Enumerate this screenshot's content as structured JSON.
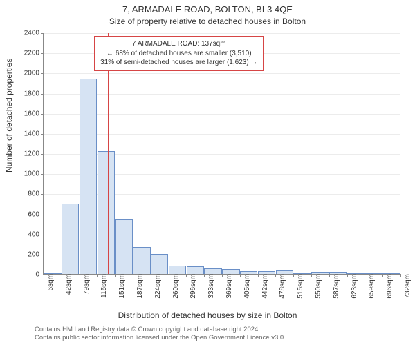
{
  "title_main": "7, ARMADALE ROAD, BOLTON, BL3 4QE",
  "title_sub": "Size of property relative to detached houses in Bolton",
  "y_axis_label": "Number of detached properties",
  "x_axis_label": "Distribution of detached houses by size in Bolton",
  "footer_line1": "Contains HM Land Registry data © Crown copyright and database right 2024.",
  "footer_line2": "Contains public sector information licensed under the Open Government Licence v3.0.",
  "annotation": {
    "line1": "7 ARMADALE ROAD: 137sqm",
    "line2": "← 68% of detached houses are smaller (3,510)",
    "line3": "31% of semi-detached houses are larger (1,623) →"
  },
  "chart": {
    "type": "histogram",
    "background_color": "#ffffff",
    "grid_color": "#ececec",
    "axis_color": "#888888",
    "bar_fill": "#d6e3f3",
    "bar_stroke": "#6a8fc7",
    "ref_line_color": "#d64545",
    "ref_line_x_value": 137,
    "ylim": [
      0,
      2400
    ],
    "ytick_step": 200,
    "xtick_labels": [
      "6sqm",
      "42sqm",
      "79sqm",
      "115sqm",
      "151sqm",
      "187sqm",
      "224sqm",
      "260sqm",
      "296sqm",
      "333sqm",
      "369sqm",
      "405sqm",
      "442sqm",
      "478sqm",
      "515sqm",
      "550sqm",
      "587sqm",
      "623sqm",
      "659sqm",
      "696sqm",
      "732sqm"
    ],
    "bar_values": [
      0,
      700,
      1940,
      1220,
      540,
      270,
      200,
      85,
      75,
      55,
      45,
      30,
      28,
      35,
      10,
      18,
      20,
      0,
      0,
      0
    ],
    "annotation_box_border": "#d64545",
    "title_fontsize": 13,
    "subtitle_fontsize": 12,
    "label_fontsize": 12,
    "tick_fontsize": 10,
    "annotation_fontsize": 10,
    "footer_fontsize": 9.5
  }
}
